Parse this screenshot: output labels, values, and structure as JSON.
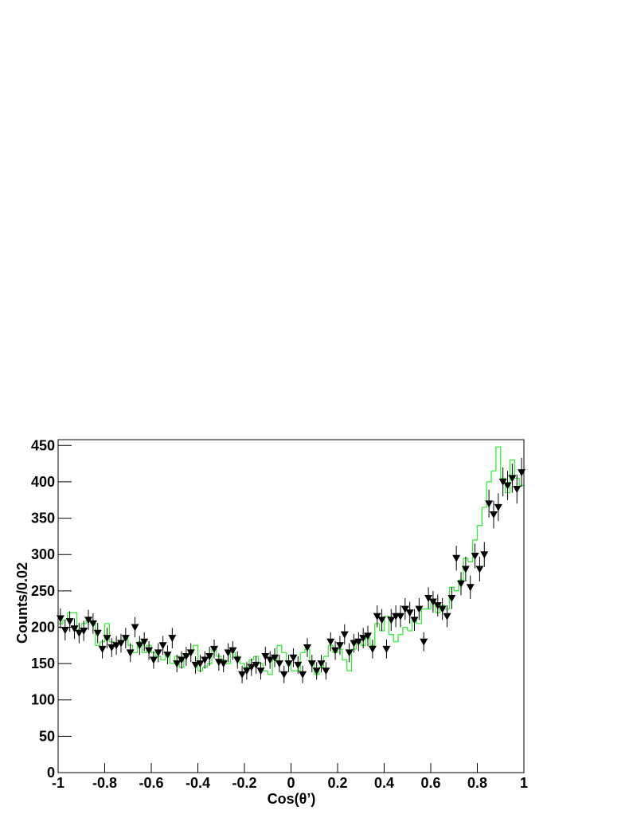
{
  "chart_data": {
    "type": "histogram",
    "xlabel": "Cos(θ’)",
    "ylabel": "Counts/0.02",
    "xlim": [
      -1,
      1
    ],
    "ylim": [
      0,
      458
    ],
    "xticks": [
      -1,
      -0.8,
      -0.6,
      -0.4,
      -0.2,
      0,
      0.2,
      0.4,
      0.6,
      0.8,
      1
    ],
    "yticks": [
      0,
      50,
      100,
      150,
      200,
      250,
      300,
      350,
      400,
      450
    ],
    "bins": [
      -1,
      -0.98,
      -0.96,
      -0.94,
      -0.92,
      -0.9,
      -0.88,
      -0.86,
      -0.84,
      -0.82,
      -0.8,
      -0.78,
      -0.76,
      -0.74,
      -0.72,
      -0.7,
      -0.68,
      -0.66,
      -0.64,
      -0.62,
      -0.6,
      -0.58,
      -0.56,
      -0.54,
      -0.52,
      -0.5,
      -0.48,
      -0.46,
      -0.44,
      -0.42,
      -0.4,
      -0.38,
      -0.36,
      -0.34,
      -0.32,
      -0.3,
      -0.28,
      -0.26,
      -0.24,
      -0.22,
      -0.2,
      -0.18,
      -0.16,
      -0.14,
      -0.12,
      -0.1,
      -0.08,
      -0.06,
      -0.04,
      -0.02,
      0,
      0.02,
      0.04,
      0.06,
      0.08,
      0.1,
      0.12,
      0.14,
      0.16,
      0.18,
      0.2,
      0.22,
      0.24,
      0.26,
      0.28,
      0.3,
      0.32,
      0.34,
      0.36,
      0.38,
      0.4,
      0.42,
      0.44,
      0.46,
      0.48,
      0.5,
      0.52,
      0.54,
      0.56,
      0.58,
      0.6,
      0.62,
      0.64,
      0.66,
      0.68,
      0.7,
      0.72,
      0.74,
      0.76,
      0.78,
      0.8,
      0.82,
      0.84,
      0.86,
      0.88,
      0.9,
      0.92,
      0.94,
      0.96,
      0.98,
      1
    ],
    "series": [
      {
        "color": "#33ee33",
        "style": "step",
        "values": [
          205,
          210,
          220,
          220,
          195,
          205,
          210,
          205,
          175,
          180,
          205,
          180,
          175,
          180,
          185,
          175,
          165,
          180,
          165,
          175,
          165,
          160,
          155,
          165,
          150,
          160,
          145,
          160,
          165,
          175,
          140,
          145,
          150,
          170,
          160,
          155,
          150,
          165,
          160,
          150,
          145,
          155,
          160,
          150,
          140,
          135,
          155,
          175,
          165,
          150,
          140,
          140,
          165,
          170,
          150,
          135,
          145,
          160,
          175,
          165,
          170,
          155,
          140,
          170,
          180,
          175,
          185,
          175,
          205,
          195,
          215,
          190,
          180,
          190,
          200,
          195,
          210,
          205,
          225,
          225,
          235,
          220,
          230,
          225,
          255,
          250,
          265,
          295,
          290,
          320,
          340,
          365,
          400,
          415,
          448,
          405,
          385,
          430,
          405,
          395
        ]
      },
      {
        "color": "#000000",
        "style": "points",
        "values": [
          212,
          196,
          208,
          198,
          192,
          195,
          210,
          205,
          192,
          170,
          185,
          172,
          175,
          178,
          185,
          165,
          200,
          175,
          180,
          168,
          155,
          165,
          175,
          162,
          185,
          150,
          155,
          160,
          165,
          148,
          150,
          155,
          160,
          170,
          152,
          150,
          165,
          168,
          155,
          135,
          140,
          145,
          148,
          140,
          160,
          155,
          158,
          150,
          135,
          150,
          158,
          148,
          135,
          172,
          150,
          140,
          150,
          140,
          180,
          168,
          175,
          190,
          165,
          178,
          180,
          185,
          188,
          170,
          215,
          210,
          170,
          210,
          215,
          215,
          225,
          220,
          210,
          225,
          180,
          240,
          235,
          230,
          225,
          215,
          240,
          295,
          260,
          280,
          255,
          298,
          280,
          300,
          370,
          355,
          365,
          400,
          395,
          405,
          390,
          413
        ],
        "errors": [
          14,
          14,
          14,
          14,
          14,
          14,
          14,
          14,
          14,
          13,
          14,
          13,
          13,
          13,
          14,
          13,
          14,
          13,
          13,
          13,
          12,
          13,
          13,
          13,
          14,
          12,
          12,
          13,
          13,
          12,
          12,
          12,
          13,
          13,
          12,
          12,
          13,
          13,
          12,
          12,
          12,
          12,
          12,
          12,
          13,
          12,
          13,
          12,
          12,
          12,
          13,
          12,
          12,
          13,
          12,
          12,
          12,
          12,
          13,
          13,
          13,
          14,
          13,
          13,
          13,
          14,
          14,
          13,
          15,
          15,
          13,
          15,
          15,
          15,
          15,
          15,
          15,
          15,
          13,
          15,
          15,
          15,
          15,
          15,
          15,
          17,
          16,
          17,
          16,
          17,
          17,
          17,
          19,
          19,
          19,
          20,
          20,
          20,
          20,
          20
        ]
      }
    ]
  }
}
